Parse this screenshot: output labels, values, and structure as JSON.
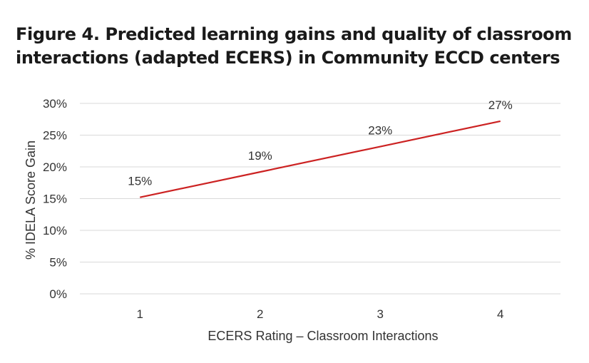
{
  "chart_data": {
    "type": "line",
    "title": "Figure 4. Predicted learning gains and  quality of classroom\ninteractions (adapted ECERS) in Community ECCD centers",
    "xlabel": "ECERS Rating – Classroom Interactions",
    "ylabel": "% IDELA Score Gain",
    "categories": [
      "1",
      "2",
      "3",
      "4"
    ],
    "series": [
      {
        "values": [
          15.2,
          19.2,
          23.2,
          27.2
        ],
        "labels": [
          "15%",
          "19%",
          "23%",
          "27%"
        ],
        "color": "#cc2222"
      }
    ],
    "ylim": [
      0,
      30
    ],
    "yticks": [
      0,
      5,
      10,
      15,
      20,
      25,
      30
    ],
    "ytick_labels": [
      "0%",
      "5%",
      "10%",
      "15%",
      "20%",
      "25%",
      "30%"
    ],
    "grid": true,
    "legend": "none"
  }
}
